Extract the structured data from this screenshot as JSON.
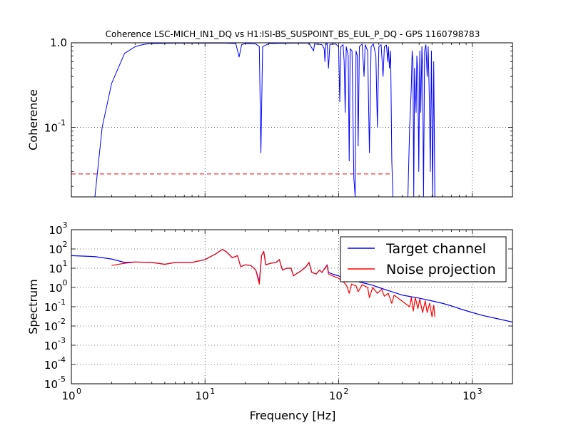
{
  "figure": {
    "title": "Coherence LSC-MICH_IN1_DQ vs H1:ISI-BS_SUSPOINT_BS_EUL_P_DQ - GPS 1160798783",
    "xlabel": "Frequency [Hz]"
  },
  "colors": {
    "target": "#0000ff",
    "noise": "#ff0000",
    "threshold": "#ff0000"
  },
  "chart_data": [
    {
      "type": "line",
      "xscale": "log",
      "yscale": "log",
      "xlim": [
        1,
        2000
      ],
      "ylim": [
        0.015,
        1
      ],
      "ylabel": "Coherence",
      "grid": true,
      "x_ticks": [
        {
          "base": "10",
          "exp": "0"
        },
        {
          "base": "10",
          "exp": "1"
        },
        {
          "base": "10",
          "exp": "2"
        },
        {
          "base": "10",
          "exp": "3"
        }
      ],
      "y_ticks": [
        {
          "value": 0.1,
          "base": "10",
          "exp": "-1"
        },
        {
          "value": 1,
          "base": "",
          "exp": "",
          "text": "1.0"
        }
      ],
      "threshold": {
        "y": 0.028,
        "x_range": [
          1,
          250
        ]
      },
      "series": [
        {
          "color": "#0000ff",
          "points": [
            [
              1.5,
              0.015
            ],
            [
              1.7,
              0.1
            ],
            [
              2.0,
              0.33
            ],
            [
              2.5,
              0.75
            ],
            [
              3.0,
              0.9
            ],
            [
              3.5,
              0.96
            ],
            [
              4.0,
              0.98
            ],
            [
              6,
              0.99
            ],
            [
              10,
              0.99
            ],
            [
              14,
              0.99
            ],
            [
              17,
              0.98
            ],
            [
              18,
              0.68
            ],
            [
              18.8,
              0.95
            ],
            [
              20,
              0.98
            ],
            [
              24,
              0.97
            ],
            [
              25.5,
              0.9
            ],
            [
              26.2,
              0.05
            ],
            [
              27,
              0.9
            ],
            [
              30,
              0.98
            ],
            [
              45,
              0.99
            ],
            [
              60,
              0.99
            ],
            [
              65,
              0.8
            ],
            [
              66,
              0.97
            ],
            [
              72,
              0.96
            ],
            [
              75,
              0.95
            ],
            [
              78,
              0.85
            ],
            [
              79,
              0.6
            ],
            [
              80,
              0.94
            ],
            [
              82,
              0.99
            ],
            [
              84,
              0.5
            ],
            [
              86,
              0.96
            ],
            [
              95,
              0.97
            ],
            [
              100,
              0.9
            ],
            [
              102,
              0.2
            ],
            [
              104,
              0.9
            ],
            [
              108,
              0.95
            ],
            [
              110,
              0.6
            ],
            [
              112,
              0.15
            ],
            [
              114,
              0.9
            ],
            [
              118,
              0.7
            ],
            [
              120,
              0.04
            ],
            [
              122,
              0.85
            ],
            [
              126,
              0.8
            ],
            [
              130,
              0.025
            ],
            [
              133,
              0.015
            ],
            [
              135,
              0.8
            ],
            [
              138,
              0.7
            ],
            [
              140,
              0.06
            ],
            [
              143,
              0.9
            ],
            [
              150,
              0.97
            ],
            [
              155,
              0.4
            ],
            [
              158,
              0.95
            ],
            [
              165,
              0.8
            ],
            [
              170,
              0.05
            ],
            [
              175,
              0.9
            ],
            [
              182,
              0.97
            ],
            [
              190,
              0.7
            ],
            [
              195,
              0.1
            ],
            [
              200,
              0.9
            ],
            [
              208,
              0.95
            ],
            [
              215,
              0.4
            ],
            [
              220,
              0.9
            ],
            [
              228,
              0.94
            ],
            [
              233,
              0.6
            ],
            [
              236,
              0.9
            ],
            [
              240,
              0.5
            ],
            [
              245,
              0.8
            ],
            [
              250,
              0.04
            ],
            [
              255,
              0.015
            ],
            [
              330,
              0.015
            ],
            [
              340,
              0.1
            ],
            [
              350,
              0.3
            ],
            [
              355,
              0.8
            ],
            [
              360,
              0.6
            ],
            [
              365,
              0.015
            ],
            [
              370,
              0.5
            ],
            [
              380,
              0.15
            ],
            [
              385,
              0.7
            ],
            [
              392,
              0.4
            ],
            [
              398,
              0.03
            ],
            [
              405,
              0.8
            ],
            [
              412,
              0.15
            ],
            [
              420,
              0.9
            ],
            [
              425,
              0.5
            ],
            [
              432,
              0.015
            ],
            [
              440,
              0.8
            ],
            [
              450,
              0.95
            ],
            [
              460,
              0.4
            ],
            [
              468,
              0.9
            ],
            [
              478,
              0.2
            ],
            [
              485,
              0.03
            ],
            [
              495,
              0.8
            ],
            [
              505,
              0.015
            ],
            [
              515,
              0.6
            ],
            [
              525,
              0.015
            ]
          ]
        }
      ]
    },
    {
      "type": "line",
      "xscale": "log",
      "yscale": "log",
      "xlim": [
        1,
        2000
      ],
      "ylim": [
        1e-05,
        1000
      ],
      "ylabel": "Spectrum",
      "grid": true,
      "legend_position": "top-right",
      "x_ticks": [
        {
          "base": "10",
          "exp": "0"
        },
        {
          "base": "10",
          "exp": "1"
        },
        {
          "base": "10",
          "exp": "2"
        },
        {
          "base": "10",
          "exp": "3"
        }
      ],
      "y_ticks": [
        {
          "value": 1e-05,
          "base": "10",
          "exp": "-5"
        },
        {
          "value": 0.0001,
          "base": "10",
          "exp": "-4"
        },
        {
          "value": 0.001,
          "base": "10",
          "exp": "-3"
        },
        {
          "value": 0.01,
          "base": "10",
          "exp": "-2"
        },
        {
          "value": 0.1,
          "base": "10",
          "exp": "-1"
        },
        {
          "value": 1,
          "base": "10",
          "exp": "0"
        },
        {
          "value": 10,
          "base": "10",
          "exp": "1"
        },
        {
          "value": 100,
          "base": "10",
          "exp": "2"
        },
        {
          "value": 1000,
          "base": "10",
          "exp": "3"
        }
      ],
      "series": [
        {
          "name": "Target channel",
          "color": "#0000ff",
          "points": [
            [
              1,
              45
            ],
            [
              1.5,
              40
            ],
            [
              2,
              30
            ],
            [
              2.5,
              20
            ],
            [
              3,
              21
            ],
            [
              4,
              20
            ],
            [
              5,
              16
            ],
            [
              6,
              20
            ],
            [
              8,
              20
            ],
            [
              10,
              28
            ],
            [
              12,
              55
            ],
            [
              13.5,
              95
            ],
            [
              14.5,
              70
            ],
            [
              16,
              35
            ],
            [
              17.5,
              45
            ],
            [
              18.5,
              12
            ],
            [
              20,
              15
            ],
            [
              22,
              14
            ],
            [
              24,
              8
            ],
            [
              25.5,
              2
            ],
            [
              26.5,
              45
            ],
            [
              27.5,
              75
            ],
            [
              28.5,
              15
            ],
            [
              31,
              18
            ],
            [
              34,
              20
            ],
            [
              36,
              28
            ],
            [
              38,
              8
            ],
            [
              41,
              10
            ],
            [
              44,
              10
            ],
            [
              46,
              4
            ],
            [
              48,
              5
            ],
            [
              52,
              7
            ],
            [
              57,
              12
            ],
            [
              60,
              20
            ],
            [
              63,
              6
            ],
            [
              68,
              5
            ],
            [
              72,
              8
            ],
            [
              75,
              6
            ],
            [
              82,
              15
            ],
            [
              84,
              6
            ],
            [
              90,
              5
            ],
            [
              100,
              4
            ],
            [
              110,
              3
            ],
            [
              120,
              2.5
            ],
            [
              140,
              2
            ],
            [
              160,
              1.6
            ],
            [
              180,
              1.3
            ],
            [
              200,
              1.0
            ],
            [
              250,
              0.6
            ],
            [
              300,
              0.4
            ],
            [
              350,
              0.33
            ],
            [
              400,
              0.28
            ],
            [
              500,
              0.2
            ],
            [
              600,
              0.15
            ],
            [
              700,
              0.11
            ],
            [
              800,
              0.08
            ],
            [
              1000,
              0.05
            ],
            [
              1200,
              0.035
            ],
            [
              1500,
              0.025
            ],
            [
              2000,
              0.016
            ]
          ]
        },
        {
          "name": "Noise projection",
          "color": "#ff0000",
          "points": [
            [
              2,
              14
            ],
            [
              2.5,
              18
            ],
            [
              3,
              21
            ],
            [
              4,
              20
            ],
            [
              5,
              16
            ],
            [
              6,
              20
            ],
            [
              8,
              20
            ],
            [
              10,
              28
            ],
            [
              12,
              55
            ],
            [
              13.5,
              95
            ],
            [
              14.5,
              70
            ],
            [
              16,
              35
            ],
            [
              17.5,
              45
            ],
            [
              18.5,
              12
            ],
            [
              20,
              15
            ],
            [
              22,
              14
            ],
            [
              24,
              8
            ],
            [
              25.5,
              1.5
            ],
            [
              26.5,
              45
            ],
            [
              27.5,
              75
            ],
            [
              28.5,
              15
            ],
            [
              31,
              18
            ],
            [
              34,
              20
            ],
            [
              36,
              28
            ],
            [
              38,
              8
            ],
            [
              41,
              10
            ],
            [
              44,
              10
            ],
            [
              46,
              4
            ],
            [
              48,
              5
            ],
            [
              52,
              7
            ],
            [
              57,
              12
            ],
            [
              60,
              20
            ],
            [
              63,
              6
            ],
            [
              68,
              5
            ],
            [
              72,
              8
            ],
            [
              75,
              6
            ],
            [
              82,
              14
            ],
            [
              84,
              5
            ],
            [
              90,
              4
            ],
            [
              100,
              3
            ],
            [
              110,
              1.8
            ],
            [
              115,
              1.2
            ],
            [
              120,
              0.5
            ],
            [
              125,
              1.5
            ],
            [
              135,
              1.2
            ],
            [
              140,
              0.6
            ],
            [
              150,
              1.4
            ],
            [
              165,
              1.0
            ],
            [
              170,
              0.3
            ],
            [
              180,
              1.0
            ],
            [
              195,
              0.5
            ],
            [
              210,
              0.8
            ],
            [
              220,
              0.35
            ],
            [
              235,
              0.5
            ],
            [
              250,
              0.15
            ],
            [
              260,
              0.4
            ],
            [
              340,
              0.1
            ],
            [
              350,
              0.3
            ],
            [
              362,
              0.06
            ],
            [
              375,
              0.3
            ],
            [
              392,
              0.08
            ],
            [
              405,
              0.25
            ],
            [
              425,
              0.05
            ],
            [
              445,
              0.2
            ],
            [
              460,
              0.05
            ],
            [
              480,
              0.15
            ],
            [
              500,
              0.03
            ],
            [
              515,
              0.12
            ],
            [
              525,
              0.03
            ]
          ]
        }
      ]
    }
  ]
}
